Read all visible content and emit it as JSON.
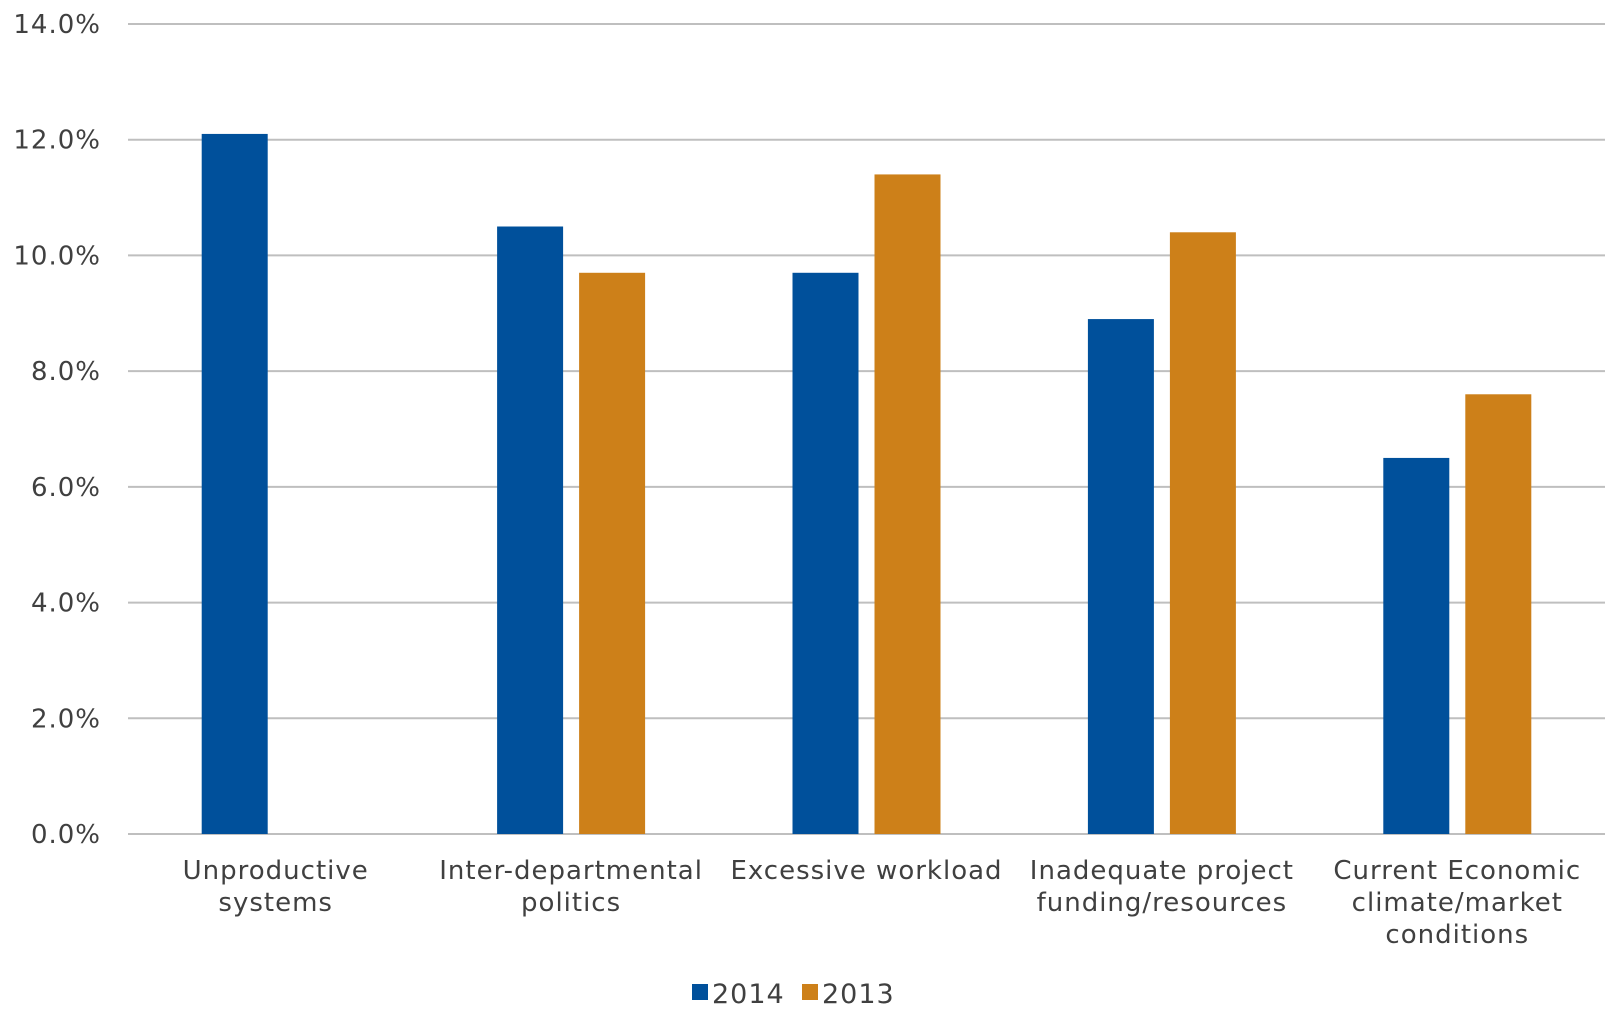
{
  "chart_data": {
    "type": "bar",
    "categories": [
      [
        "Unproductive",
        "systems"
      ],
      [
        "Inter-departmental",
        "politics"
      ],
      [
        "Excessive workload"
      ],
      [
        "Inadequate project",
        "funding/resources"
      ],
      [
        "Current Economic",
        "climate/market",
        "conditions"
      ]
    ],
    "series": [
      {
        "name": "2014",
        "color": "#00509B",
        "values": [
          12.1,
          10.5,
          9.7,
          8.9,
          6.5
        ]
      },
      {
        "name": "2013",
        "color": "#CD8019",
        "values": [
          null,
          9.7,
          11.4,
          10.4,
          7.6
        ]
      }
    ],
    "y_ticks": [
      "0.0%",
      "2.0%",
      "4.0%",
      "6.0%",
      "8.0%",
      "10.0%",
      "12.0%",
      "14.0%"
    ],
    "ylim": [
      0,
      14
    ],
    "grid": true,
    "gridline_color": "#BFBFBF",
    "legend_position": "bottom"
  }
}
